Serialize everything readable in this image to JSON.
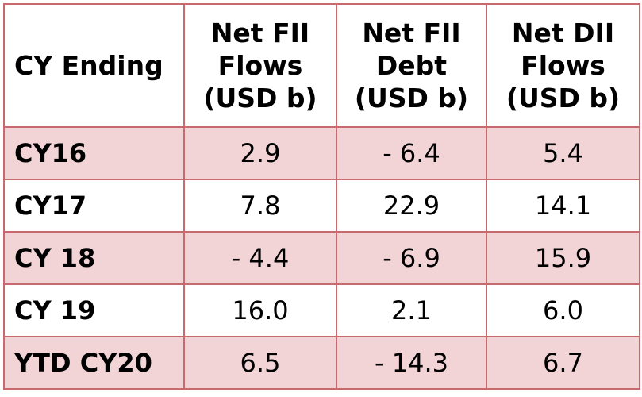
{
  "table": {
    "headers": [
      [
        "CY Ending"
      ],
      [
        "Net FII",
        "Flows",
        "(USD b)"
      ],
      [
        "Net FII",
        "Debt",
        "(USD b)"
      ],
      [
        "Net DII",
        "Flows",
        "(USD b)"
      ]
    ],
    "rows": [
      [
        "CY16",
        "2.9",
        "- 6.4",
        "5.4"
      ],
      [
        "CY17",
        "7.8",
        "22.9",
        "14.1"
      ],
      [
        "CY 18",
        "- 4.4",
        "- 6.9",
        "15.9"
      ],
      [
        "CY 19",
        "16.0",
        "2.1",
        "6.0"
      ],
      [
        "YTD CY20",
        "6.5",
        "- 14.3",
        "6.7"
      ]
    ],
    "colors": {
      "border": "#c8696e",
      "shaded_row": "#f2d4d6"
    }
  }
}
